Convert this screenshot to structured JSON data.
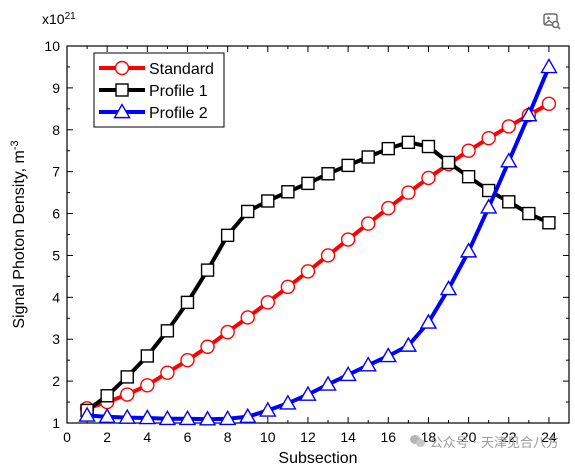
{
  "chart_data": {
    "type": "line",
    "title": "",
    "xlabel": "Subsection",
    "ylabel": "Signal Photon Density, m",
    "ylabel_superscript": "-3",
    "multiplier_base": "x10",
    "multiplier_exp": "21",
    "xlim": [
      0,
      25
    ],
    "ylim": [
      1,
      10
    ],
    "xticks": [
      0,
      2,
      4,
      6,
      8,
      10,
      12,
      14,
      16,
      18,
      20,
      22,
      24
    ],
    "yticks": [
      1,
      2,
      3,
      4,
      5,
      6,
      7,
      8,
      9,
      10
    ],
    "legend_position": "top-left",
    "grid": false,
    "series": [
      {
        "name": "Standard",
        "color": "#ff0000",
        "marker": "circle",
        "x": [
          1,
          2,
          3,
          4,
          5,
          6,
          7,
          8,
          9,
          10,
          11,
          12,
          13,
          14,
          15,
          16,
          17,
          18,
          19,
          20,
          21,
          22,
          23,
          24
        ],
        "y": [
          1.35,
          1.5,
          1.68,
          1.9,
          2.2,
          2.5,
          2.82,
          3.17,
          3.52,
          3.88,
          4.25,
          4.62,
          5.0,
          5.38,
          5.76,
          6.13,
          6.5,
          6.85,
          7.18,
          7.5,
          7.8,
          8.08,
          8.35,
          8.62
        ]
      },
      {
        "name": "Profile 1",
        "color": "#000000",
        "marker": "square",
        "x": [
          1,
          2,
          3,
          4,
          5,
          6,
          7,
          8,
          9,
          10,
          11,
          12,
          13,
          14,
          15,
          16,
          17,
          18,
          19,
          20,
          21,
          22,
          23,
          24
        ],
        "y": [
          1.3,
          1.65,
          2.1,
          2.6,
          3.2,
          3.88,
          4.65,
          5.48,
          6.05,
          6.3,
          6.52,
          6.72,
          6.95,
          7.15,
          7.35,
          7.55,
          7.7,
          7.6,
          7.22,
          6.88,
          6.55,
          6.28,
          6.0,
          5.78
        ]
      },
      {
        "name": "Profile 2",
        "color": "#0000ff",
        "marker": "triangle",
        "x": [
          1,
          2,
          3,
          4,
          5,
          6,
          7,
          8,
          9,
          10,
          11,
          12,
          13,
          14,
          15,
          16,
          17,
          18,
          19,
          20,
          21,
          22,
          23,
          24
        ],
        "y": [
          1.18,
          1.15,
          1.13,
          1.12,
          1.1,
          1.1,
          1.09,
          1.1,
          1.15,
          1.3,
          1.47,
          1.68,
          1.92,
          2.15,
          2.38,
          2.6,
          2.85,
          3.4,
          4.2,
          5.1,
          6.15,
          7.25,
          8.35,
          9.5
        ]
      }
    ]
  },
  "watermark": {
    "text": "公众号 · 天津见合八方"
  },
  "icons": {
    "corner": "image-search-icon",
    "watermark": "wechat-icon"
  }
}
